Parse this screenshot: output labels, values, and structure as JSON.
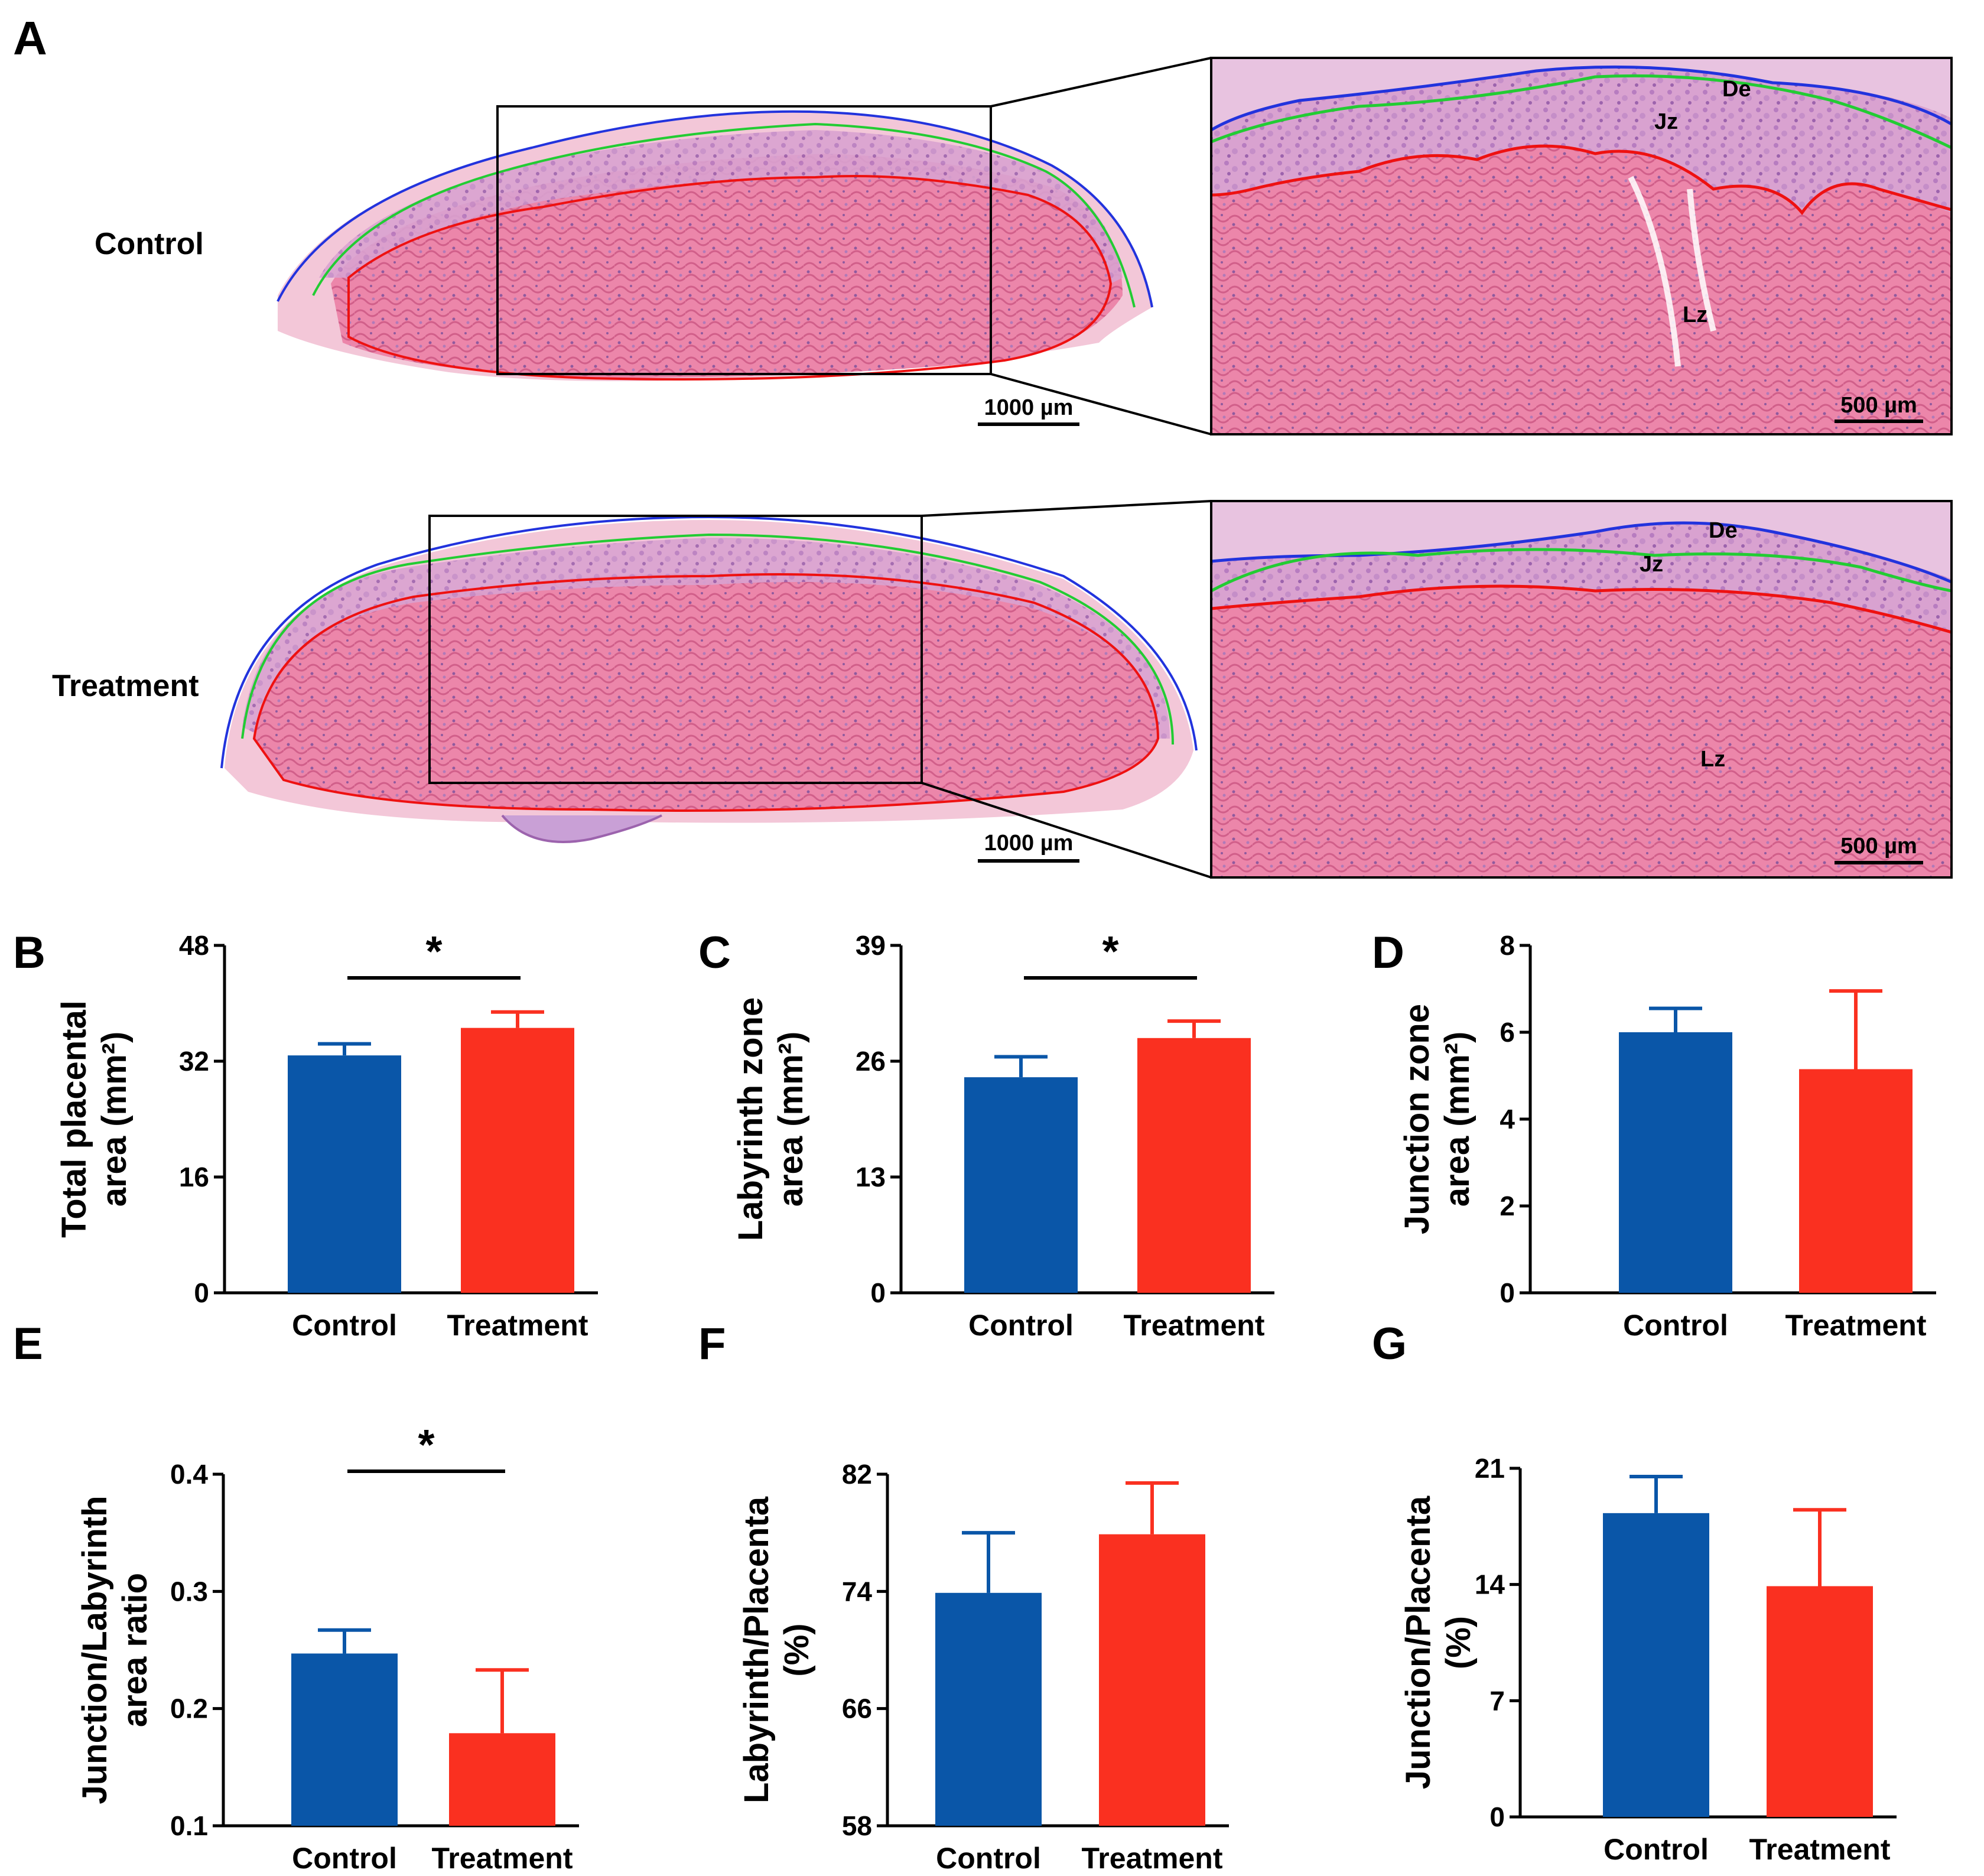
{
  "histology": {
    "panel_label": "A",
    "rows": [
      {
        "label": "Control",
        "scale_overview": "1000 µm",
        "scale_zoom": "500 µm",
        "zones": [
          "De",
          "Jz",
          "Lz"
        ]
      },
      {
        "label": "Treatment",
        "scale_overview": "1000 µm",
        "scale_zoom": "500 µm",
        "zones": [
          "De",
          "Jz",
          "Lz"
        ]
      }
    ],
    "colors": {
      "tissue": "#e9799f",
      "tissue_light": "#f2b9d0",
      "outline_blue": "#2233dd",
      "outline_green": "#22cc33",
      "outline_red": "#ee1111"
    }
  },
  "colors": {
    "control": "#0a56a8",
    "treatment": "#fa3020"
  },
  "chart_data": [
    {
      "panel": "B",
      "type": "bar",
      "categories": [
        "Control",
        "Treatment"
      ],
      "values": [
        32.8,
        36.6
      ],
      "errors": [
        1.6,
        2.2
      ],
      "ylabel_lines": [
        "Total placental",
        "area (mm²)"
      ],
      "ylim": [
        0,
        48
      ],
      "yticks": [
        "0",
        "16",
        "32",
        "48"
      ],
      "significance": "*"
    },
    {
      "panel": "C",
      "type": "bar",
      "categories": [
        "Control",
        "Treatment"
      ],
      "values": [
        24.2,
        28.6
      ],
      "errors": [
        2.3,
        1.9
      ],
      "ylabel_lines": [
        "Labyrinth zone",
        "area (mm²)"
      ],
      "ylim": [
        0,
        39
      ],
      "yticks": [
        "0",
        "13",
        "26",
        "39"
      ],
      "significance": "*"
    },
    {
      "panel": "D",
      "type": "bar",
      "categories": [
        "Control",
        "Treatment"
      ],
      "values": [
        6.0,
        5.15
      ],
      "errors": [
        0.55,
        1.8
      ],
      "ylabel_lines": [
        "Junction zone",
        "area (mm²)"
      ],
      "ylim": [
        0,
        8
      ],
      "yticks": [
        "0",
        "2",
        "4",
        "6",
        "8"
      ],
      "significance": ""
    },
    {
      "panel": "E",
      "type": "bar",
      "categories": [
        "Control",
        "Treatment"
      ],
      "values": [
        0.247,
        0.179
      ],
      "errors": [
        0.02,
        0.054
      ],
      "ylabel_lines": [
        "Junction/Labyrinth",
        "area ratio"
      ],
      "ylim": [
        0.1,
        0.4
      ],
      "yticks": [
        "0.1",
        "0.2",
        "0.3",
        "0.4"
      ],
      "significance": "*"
    },
    {
      "panel": "F",
      "type": "bar",
      "categories": [
        "Control",
        "Treatment"
      ],
      "values": [
        73.9,
        77.9
      ],
      "errors": [
        4.1,
        3.5
      ],
      "ylabel_lines": [
        "Labyrinth/Placenta",
        "(%)"
      ],
      "ylim": [
        58,
        82
      ],
      "yticks": [
        "58",
        "66",
        "74",
        "82"
      ],
      "significance": ""
    },
    {
      "panel": "G",
      "type": "bar",
      "categories": [
        "Control",
        "Treatment"
      ],
      "values": [
        18.3,
        13.9
      ],
      "errors": [
        2.2,
        4.6
      ],
      "ylabel_lines": [
        "Junction/Placenta",
        "(%)"
      ],
      "ylim": [
        0,
        21
      ],
      "yticks": [
        "0",
        "7",
        "14",
        "21"
      ],
      "significance": ""
    }
  ]
}
